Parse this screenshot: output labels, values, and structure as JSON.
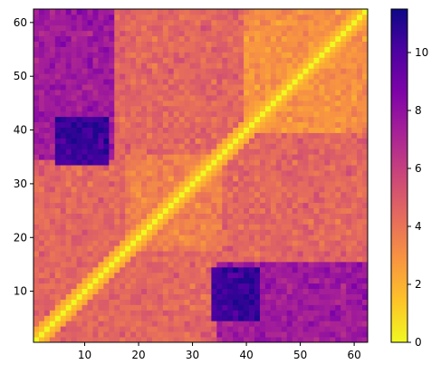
{
  "chart_data": {
    "type": "heatmap",
    "title": "",
    "xlabel": "",
    "ylabel": "",
    "colormap": "plasma_r",
    "matrix_size": 62,
    "xlim": [
      1,
      62
    ],
    "ylim": [
      1,
      62
    ],
    "x_ticks": [
      10,
      20,
      30,
      40,
      50,
      60
    ],
    "y_ticks": [
      10,
      20,
      30,
      40,
      50,
      60
    ],
    "colorbar": {
      "min": 0,
      "max": 11.5,
      "ticks": [
        0,
        2,
        4,
        6,
        8,
        10
      ]
    },
    "diagonal_value": 0,
    "regions": [
      {
        "x_range": [
          1,
          62
        ],
        "y_range": [
          1,
          62
        ],
        "approx_value": 4.5
      },
      {
        "x_range": [
          1,
          15
        ],
        "y_range": [
          35,
          62
        ],
        "approx_value": 7.5
      },
      {
        "x_range": [
          35,
          62
        ],
        "y_range": [
          1,
          15
        ],
        "approx_value": 7.5
      },
      {
        "x_range": [
          5,
          14
        ],
        "y_range": [
          34,
          42
        ],
        "approx_value": 10.5
      },
      {
        "x_range": [
          34,
          42
        ],
        "y_range": [
          5,
          14
        ],
        "approx_value": 10.5
      },
      {
        "x_range": [
          18,
          35
        ],
        "y_range": [
          18,
          35
        ],
        "approx_value": 3.5
      },
      {
        "x_range": [
          40,
          62
        ],
        "y_range": [
          40,
          62
        ],
        "approx_value": 3
      }
    ],
    "note": ""
  }
}
